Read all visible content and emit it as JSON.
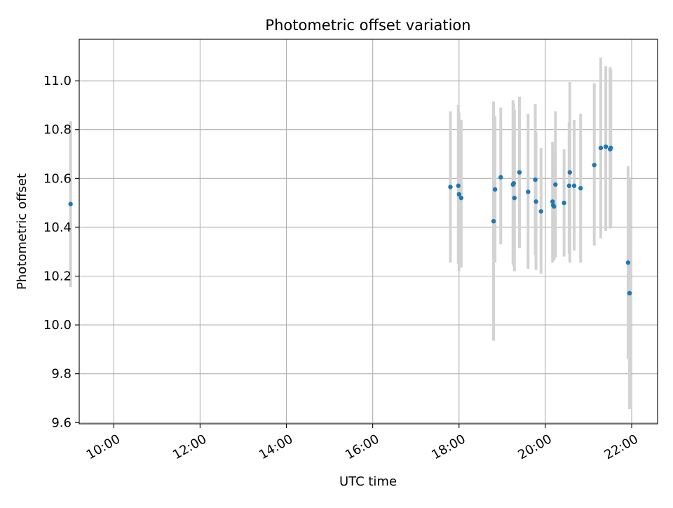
{
  "chart_data": {
    "type": "scatter",
    "title": "Photometric offset variation",
    "xlabel": "UTC time",
    "ylabel": "Photometric offset",
    "x_axis_kind": "time",
    "xlim": [
      "09:12",
      "22:36"
    ],
    "ylim": [
      9.595,
      11.17
    ],
    "x_ticks": [
      "10:00",
      "12:00",
      "14:00",
      "16:00",
      "18:00",
      "20:00",
      "22:00"
    ],
    "y_ticks": [
      "9.6",
      "9.8",
      "10.0",
      "10.2",
      "10.4",
      "10.6",
      "10.8",
      "11.0"
    ],
    "grid": true,
    "legend": "none",
    "colors": {
      "points": "#1f77b4",
      "errorbars": "#d3d3d3",
      "grid": "#b0b0b0"
    },
    "series": [
      {
        "points": [
          {
            "x": "09:00",
            "y": 10.495,
            "ylow": 10.155,
            "yhigh": 10.835
          },
          {
            "x": "17:48",
            "y": 10.565,
            "ylow": 10.255,
            "yhigh": 10.875
          },
          {
            "x": "17:59",
            "y": 10.57,
            "ylow": 10.25,
            "yhigh": 10.9
          },
          {
            "x": "18:00",
            "y": 10.535,
            "ylow": 10.22,
            "yhigh": 10.87
          },
          {
            "x": "18:03",
            "y": 10.52,
            "ylow": 10.235,
            "yhigh": 10.84
          },
          {
            "x": "18:48",
            "y": 10.425,
            "ylow": 9.935,
            "yhigh": 10.915
          },
          {
            "x": "18:50",
            "y": 10.555,
            "ylow": 10.255,
            "yhigh": 10.855
          },
          {
            "x": "18:58",
            "y": 10.605,
            "ylow": 10.33,
            "yhigh": 10.89
          },
          {
            "x": "19:15",
            "y": 10.575,
            "ylow": 10.25,
            "yhigh": 10.92
          },
          {
            "x": "19:16",
            "y": 10.58,
            "ylow": 10.24,
            "yhigh": 10.905
          },
          {
            "x": "19:17",
            "y": 10.52,
            "ylow": 10.22,
            "yhigh": 10.88
          },
          {
            "x": "19:24",
            "y": 10.625,
            "ylow": 10.315,
            "yhigh": 10.935
          },
          {
            "x": "19:36",
            "y": 10.545,
            "ylow": 10.23,
            "yhigh": 10.865
          },
          {
            "x": "19:46",
            "y": 10.595,
            "ylow": 10.285,
            "yhigh": 10.905
          },
          {
            "x": "19:47",
            "y": 10.505,
            "ylow": 10.225,
            "yhigh": 10.79
          },
          {
            "x": "19:54",
            "y": 10.465,
            "ylow": 10.21,
            "yhigh": 10.725
          },
          {
            "x": "20:10",
            "y": 10.505,
            "ylow": 10.255,
            "yhigh": 10.75
          },
          {
            "x": "20:11",
            "y": 10.49,
            "ylow": 10.275,
            "yhigh": 10.72
          },
          {
            "x": "20:12",
            "y": 10.485,
            "ylow": 10.265,
            "yhigh": 10.705
          },
          {
            "x": "20:14",
            "y": 10.575,
            "ylow": 10.275,
            "yhigh": 10.875
          },
          {
            "x": "20:26",
            "y": 10.5,
            "ylow": 10.28,
            "yhigh": 10.72
          },
          {
            "x": "20:33",
            "y": 10.57,
            "ylow": 10.29,
            "yhigh": 10.83
          },
          {
            "x": "20:34",
            "y": 10.625,
            "ylow": 10.255,
            "yhigh": 10.995
          },
          {
            "x": "20:40",
            "y": 10.57,
            "ylow": 10.305,
            "yhigh": 10.84
          },
          {
            "x": "20:49",
            "y": 10.56,
            "ylow": 10.255,
            "yhigh": 10.865
          },
          {
            "x": "21:08",
            "y": 10.655,
            "ylow": 10.325,
            "yhigh": 10.99
          },
          {
            "x": "21:17",
            "y": 10.725,
            "ylow": 10.355,
            "yhigh": 11.095
          },
          {
            "x": "21:24",
            "y": 10.73,
            "ylow": 10.385,
            "yhigh": 11.06
          },
          {
            "x": "21:30",
            "y": 10.72,
            "ylow": 10.395,
            "yhigh": 11.055
          },
          {
            "x": "21:31",
            "y": 10.725,
            "ylow": 10.4,
            "yhigh": 11.045
          },
          {
            "x": "21:55",
            "y": 10.255,
            "ylow": 9.86,
            "yhigh": 10.65
          },
          {
            "x": "21:57",
            "y": 10.13,
            "ylow": 9.655,
            "yhigh": 10.605
          }
        ]
      }
    ]
  }
}
